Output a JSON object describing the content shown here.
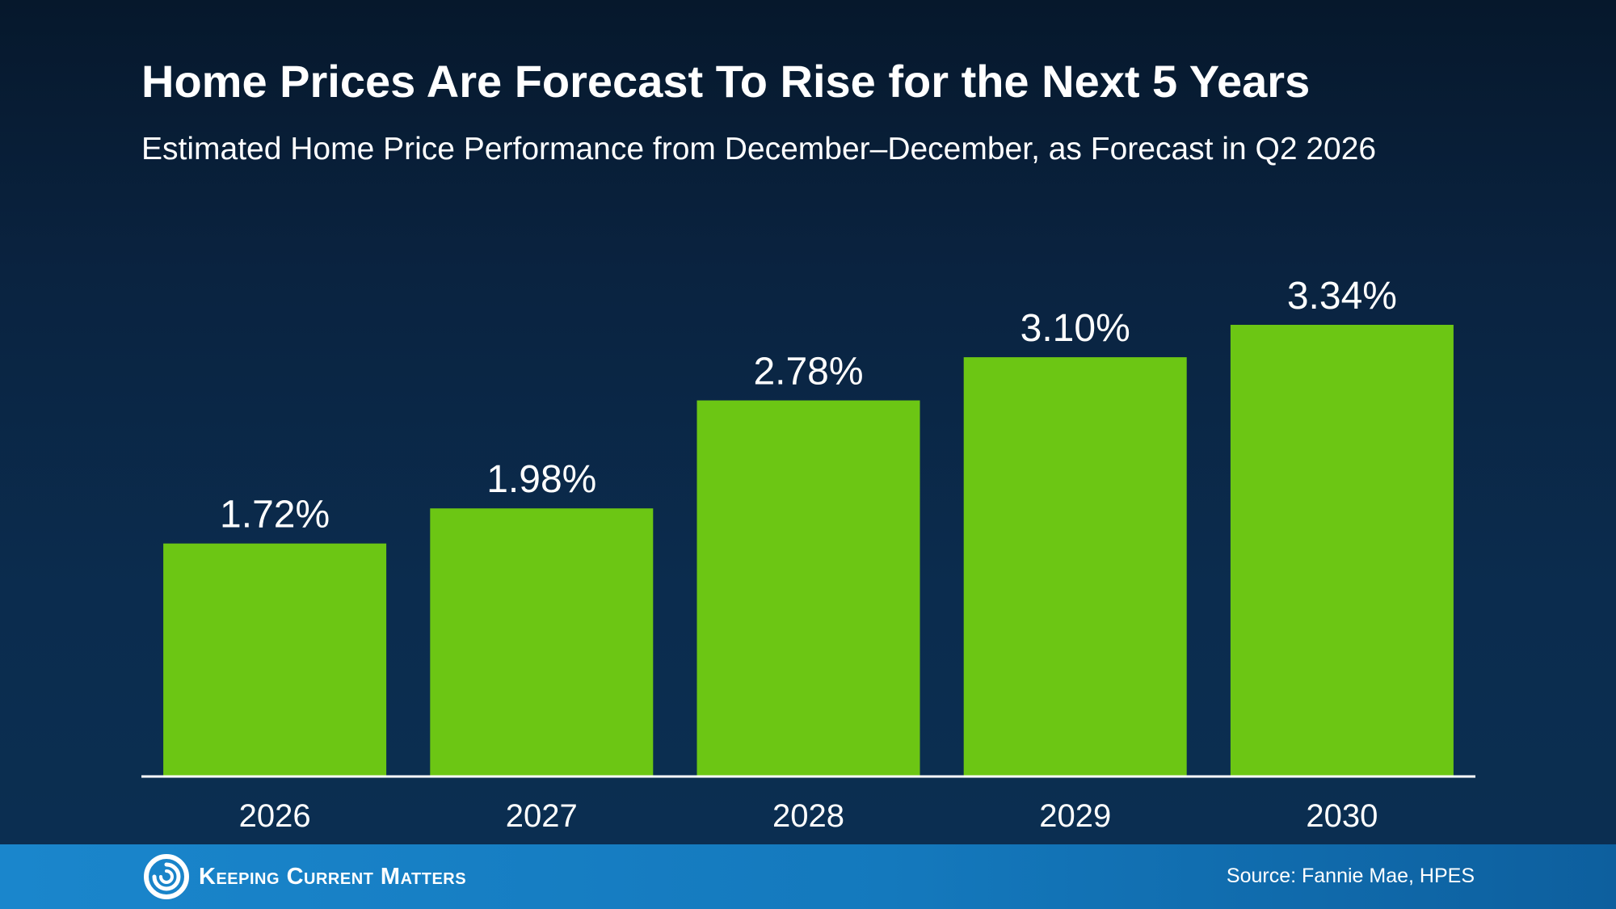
{
  "header": {
    "title": "Home Prices Are Forecast To Rise for the Next 5 Years",
    "subtitle": "Estimated Home Price Performance from December–December, as Forecast in Q2 2026"
  },
  "chart_data": {
    "type": "bar",
    "categories": [
      "2026",
      "2027",
      "2028",
      "2029",
      "2030"
    ],
    "values": [
      1.72,
      1.98,
      2.78,
      3.1,
      3.34
    ],
    "value_labels": [
      "1.72%",
      "1.98%",
      "2.78%",
      "3.10%",
      "3.34%"
    ],
    "title": "Home Prices Are Forecast To Rise for the Next 5 Years",
    "subtitle": "Estimated Home Price Performance from December–December, as Forecast in Q2 2026",
    "xlabel": "",
    "ylabel": "",
    "ylim": [
      0,
      3.34
    ],
    "grid": false,
    "legend": "none",
    "bar_color": "#6cc614"
  },
  "footer": {
    "brand": "Keeping Current Matters",
    "source": "Source: Fannie Mae, HPES",
    "logo_icon": "swirl-logo-icon"
  },
  "colors": {
    "bar": "#6cc614",
    "baseline": "#ffffff",
    "footer_bar": "#1a86cc",
    "text": "#ffffff"
  }
}
